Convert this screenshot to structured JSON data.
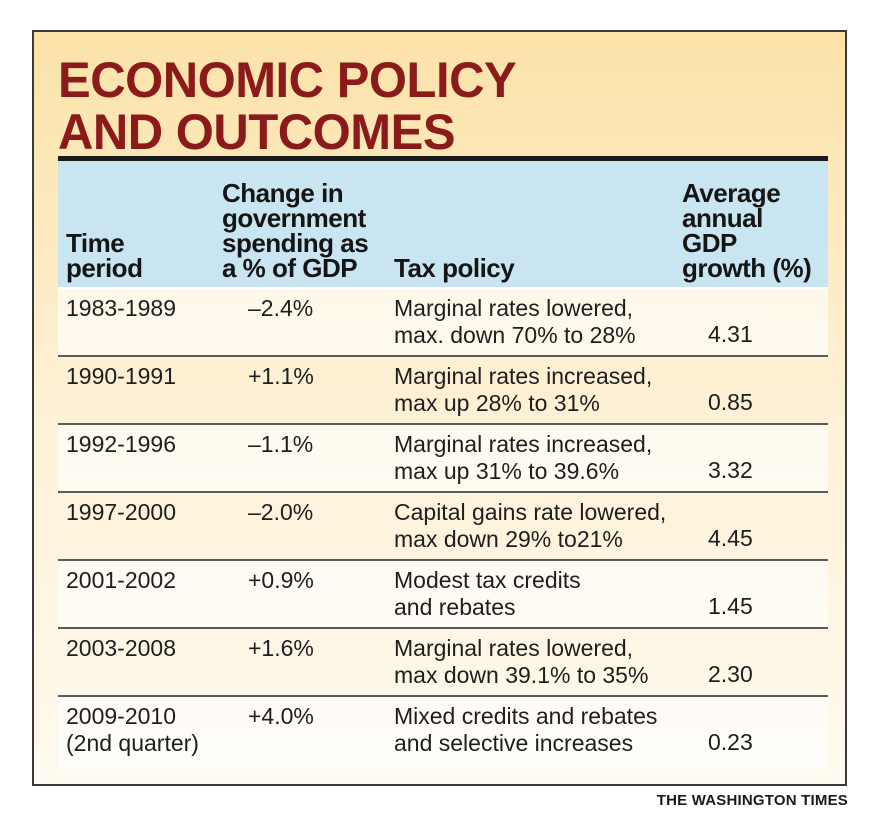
{
  "title_lines": [
    "ECONOMIC POLICY",
    "AND OUTCOMES"
  ],
  "headers": {
    "period": [
      "Time",
      "period"
    ],
    "spending": [
      "Change in",
      "government",
      "spending as",
      "a % of GDP"
    ],
    "tax": [
      "Tax policy"
    ],
    "gdp": [
      "Average",
      "annual",
      "GDP",
      "growth (%)"
    ]
  },
  "rows": [
    {
      "period": [
        "1983-1989"
      ],
      "spending": "–2.4%",
      "tax": [
        "Marginal rates lowered,",
        "max. down 70% to 28%"
      ],
      "gdp": "4.31"
    },
    {
      "period": [
        "1990-1991"
      ],
      "spending": "+1.1%",
      "tax": [
        "Marginal rates increased,",
        "max up 28% to 31%"
      ],
      "gdp": "0.85"
    },
    {
      "period": [
        "1992-1996"
      ],
      "spending": "–1.1%",
      "tax": [
        "Marginal rates increased,",
        "max up 31% to 39.6%"
      ],
      "gdp": "3.32"
    },
    {
      "period": [
        "1997-2000"
      ],
      "spending": "–2.0%",
      "tax": [
        "Capital gains rate lowered,",
        "max down 29% to21%"
      ],
      "gdp": "4.45"
    },
    {
      "period": [
        "2001-2002"
      ],
      "spending": "+0.9%",
      "tax": [
        "Modest tax credits",
        "and rebates"
      ],
      "gdp": "1.45"
    },
    {
      "period": [
        "2003-2008"
      ],
      "spending": "+1.6%",
      "tax": [
        "Marginal rates lowered,",
        "max down 39.1% to 35%"
      ],
      "gdp": "2.30"
    },
    {
      "period": [
        "2009-2010",
        "(2nd quarter)"
      ],
      "spending": "+4.0%",
      "tax": [
        "Mixed credits and rebates",
        "and selective increases"
      ],
      "gdp": "0.23"
    }
  ],
  "credit": "THE WASHINGTON TIMES",
  "colors": {
    "title": "#8b1a1a",
    "header_bg": "#c9e5f2",
    "panel_top": "#fbe2a8"
  },
  "chart_data": {
    "type": "table",
    "columns": [
      "Time period",
      "Change in government spending as a % of GDP",
      "Tax policy",
      "Average annual GDP growth (%)"
    ],
    "rows": [
      [
        "1983-1989",
        "–2.4%",
        "Marginal rates lowered, max. down 70% to 28%",
        4.31
      ],
      [
        "1990-1991",
        "+1.1%",
        "Marginal rates increased, max up 28% to 31%",
        0.85
      ],
      [
        "1992-1996",
        "–1.1%",
        "Marginal rates increased, max up 31% to 39.6%",
        3.32
      ],
      [
        "1997-2000",
        "–2.0%",
        "Capital gains rate lowered, max down 29% to21%",
        4.45
      ],
      [
        "2001-2002",
        "+0.9%",
        "Modest tax credits and rebates",
        1.45
      ],
      [
        "2003-2008",
        "+1.6%",
        "Marginal rates lowered, max down 39.1% to 35%",
        2.3
      ],
      [
        "2009-2010 (2nd quarter)",
        "+4.0%",
        "Mixed credits and rebates and selective increases",
        0.23
      ]
    ]
  }
}
